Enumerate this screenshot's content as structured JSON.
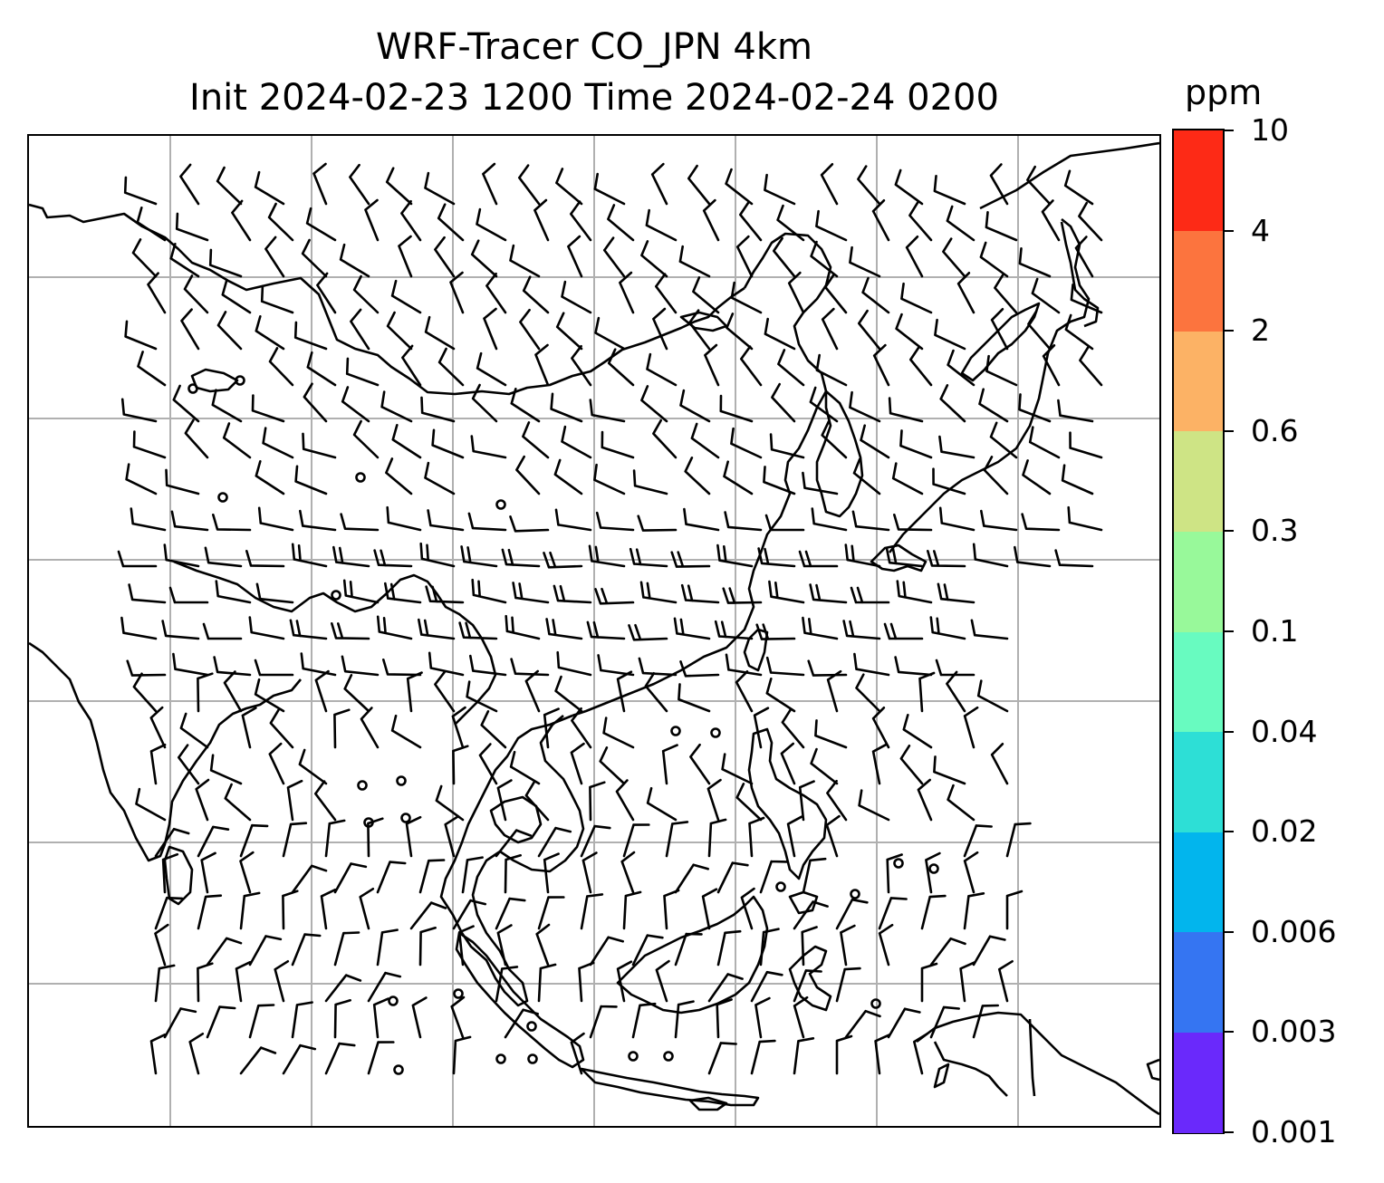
{
  "title": {
    "line1": "WRF-Tracer CO_JPN 4km",
    "line2": "Init 2024-02-23 1200 Time 2024-02-24 0200"
  },
  "colorbar": {
    "unit": "ppm",
    "levels": [
      "0.001",
      "0.003",
      "0.006",
      "0.02",
      "0.04",
      "0.1",
      "0.3",
      "0.6",
      "2",
      "4",
      "10"
    ],
    "colors": [
      "#6a29fb",
      "#3575f2",
      "#02b5ed",
      "#2ddfd6",
      "#68fbc0",
      "#98f99a",
      "#cee485",
      "#fcb265",
      "#fc743e",
      "#fd2a16"
    ]
  },
  "map": {
    "gridlines": true,
    "coastline_color": "#000000",
    "barb_color": "#000000",
    "gridline_color": "#b0b0b0"
  }
}
